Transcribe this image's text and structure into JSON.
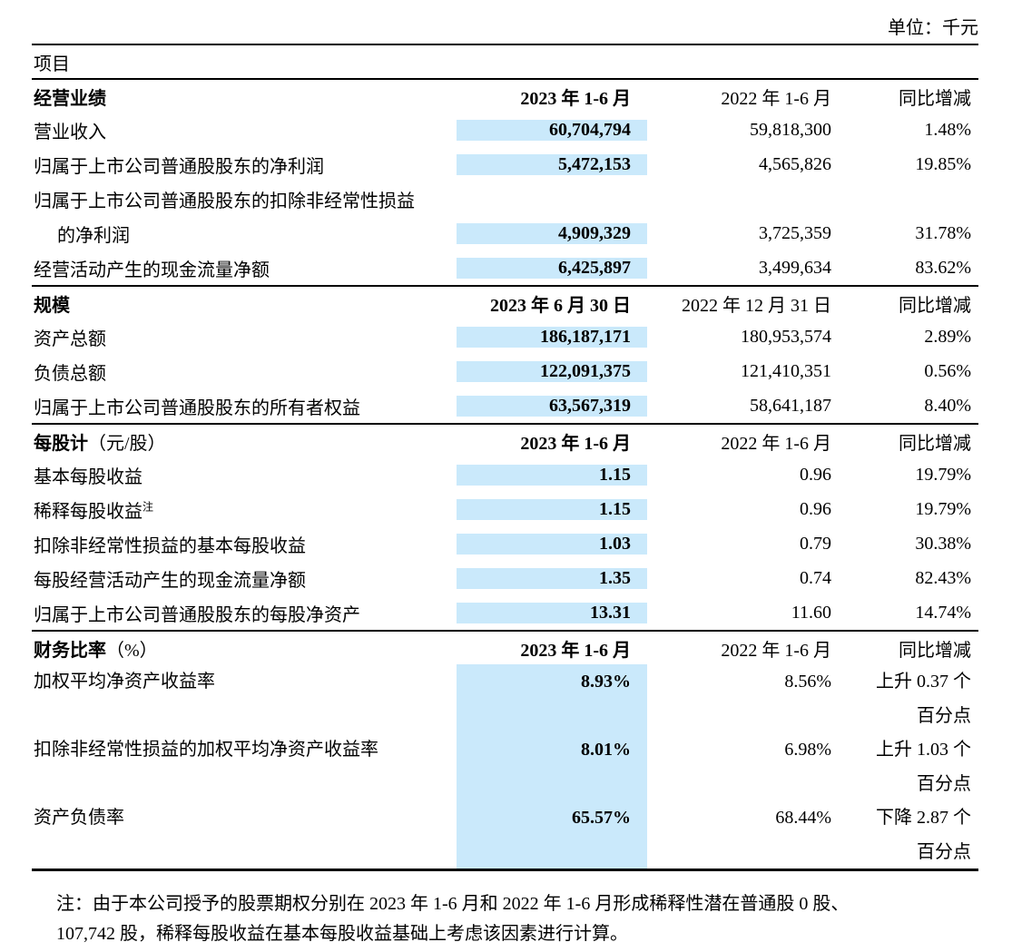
{
  "unit_label": "单位：千元",
  "item_header": "项目",
  "colors": {
    "highlight": "#cae9fb",
    "text": "#000000",
    "rule": "#000000"
  },
  "sections": [
    {
      "title": "经营业绩",
      "suffix": "",
      "col2023": "2023 年 1-6 月",
      "col2022": "2022 年 1-6 月",
      "coldelta": "同比增减",
      "rows": [
        {
          "label": "营业收入",
          "v2023": "60,704,794",
          "v2022": "59,818,300",
          "delta": "1.48%"
        },
        {
          "label": "归属于上市公司普通股股东的净利润",
          "v2023": "5,472,153",
          "v2022": "4,565,826",
          "delta": "19.85%"
        },
        {
          "label": "归属于上市公司普通股股东的扣除非经常性损益",
          "v2023": "",
          "v2022": "",
          "delta": ""
        },
        {
          "label": "的净利润",
          "indent": true,
          "v2023": "4,909,329",
          "v2022": "3,725,359",
          "delta": "31.78%"
        },
        {
          "label": "经营活动产生的现金流量净额",
          "v2023": "6,425,897",
          "v2022": "3,499,634",
          "delta": "83.62%"
        }
      ]
    },
    {
      "title": "规模",
      "suffix": "",
      "col2023": "2023 年 6 月 30 日",
      "col2022": "2022 年 12 月 31 日",
      "coldelta": "同比增减",
      "rows": [
        {
          "label": "资产总额",
          "v2023": "186,187,171",
          "v2022": "180,953,574",
          "delta": "2.89%"
        },
        {
          "label": "负债总额",
          "v2023": "122,091,375",
          "v2022": "121,410,351",
          "delta": "0.56%"
        },
        {
          "label": "归属于上市公司普通股股东的所有者权益",
          "v2023": "63,567,319",
          "v2022": "58,641,187",
          "delta": "8.40%"
        }
      ]
    },
    {
      "title": "每股计",
      "suffix": "（元/股）",
      "col2023": "2023 年 1-6 月",
      "col2022": "2022 年 1-6 月",
      "coldelta": "同比增减",
      "rows": [
        {
          "label": "基本每股收益",
          "v2023": "1.15",
          "v2022": "0.96",
          "delta": "19.79%"
        },
        {
          "label": "稀释每股收益",
          "sup": "注",
          "v2023": "1.15",
          "v2022": "0.96",
          "delta": "19.79%"
        },
        {
          "label": "扣除非经常性损益的基本每股收益",
          "v2023": "1.03",
          "v2022": "0.79",
          "delta": "30.38%"
        },
        {
          "label": "每股经营活动产生的现金流量净额",
          "v2023": "1.35",
          "v2022": "0.74",
          "delta": "82.43%"
        },
        {
          "label": "归属于上市公司普通股股东的每股净资产",
          "v2023": "13.31",
          "v2022": "11.60",
          "delta": "14.74%"
        }
      ]
    },
    {
      "title": "财务比率",
      "suffix": "（%）",
      "col2023": "2023 年 1-6 月",
      "col2022": "2022 年 1-6 月",
      "coldelta": "同比增减",
      "last": true,
      "rows": [
        {
          "label": "加权平均净资产收益率",
          "v2023": "8.93%",
          "v2022": "8.56%",
          "delta": "上升 0.37 个",
          "delta2": "百分点",
          "double": true
        },
        {
          "label": "扣除非经常性损益的加权平均净资产收益率",
          "v2023": "8.01%",
          "v2022": "6.98%",
          "delta": "上升 1.03 个",
          "delta2": "百分点",
          "double": true
        },
        {
          "label": "资产负债率",
          "v2023": "65.57%",
          "v2022": "68.44%",
          "delta": "下降 2.87 个",
          "delta2": "百分点",
          "double": true
        }
      ]
    }
  ],
  "note": {
    "line1": "注：由于本公司授予的股票期权分别在 2023 年 1-6 月和 2022 年 1-6 月形成稀释性潜在普通股 0 股、",
    "line2": "107,742 股，稀释每股收益在基本每股收益基础上考虑该因素进行计算。"
  }
}
